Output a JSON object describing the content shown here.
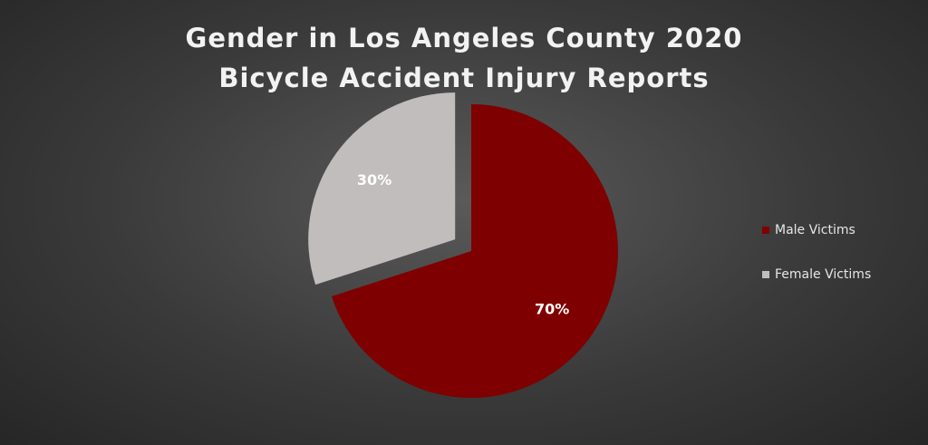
{
  "chart_data": {
    "type": "pie",
    "title": "Gender in Los Angeles County 2020 Bicycle Accident Injury Reports",
    "categories": [
      "Male Victims",
      "Female Victims"
    ],
    "values": [
      70,
      30
    ],
    "value_labels": [
      "70%",
      "30%"
    ],
    "colors": [
      "#7f0000",
      "#c1bdbd"
    ],
    "exploded": [
      false,
      true
    ],
    "legend": "right"
  }
}
